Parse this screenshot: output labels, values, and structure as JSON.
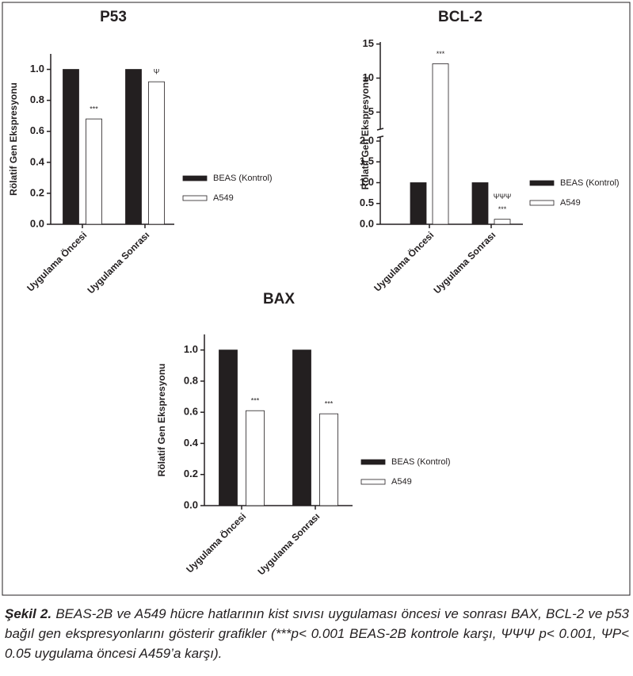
{
  "chart_data": [
    {
      "type": "bar",
      "title": "P53",
      "ylabel": "Rölatif Gen Ekspresyonu",
      "categories": [
        "Uygulama Öncesi",
        "Uygulama Sonrası"
      ],
      "series": [
        {
          "name": "BEAS (Kontrol)",
          "color": "#231f20",
          "values": [
            1,
            1
          ]
        },
        {
          "name": "A549",
          "color": "#ffffff",
          "values": [
            0.68,
            0.92
          ],
          "significance": [
            [
              "***"
            ],
            [
              "Ψ"
            ]
          ]
        }
      ],
      "ylim": [
        0,
        1.1
      ],
      "yticks": [
        {
          "value": 0,
          "label": "0.0"
        },
        0.2,
        0.4,
        0.6,
        0.8,
        {
          "value": 1,
          "label": "1.0"
        }
      ]
    },
    {
      "type": "bar",
      "title": "BCL-2",
      "ylabel": "Rölatif Gen Ekspresyonu",
      "categories": [
        "Uygulama Öncesi",
        "Uygulama Sonrası"
      ],
      "series": [
        {
          "name": "BEAS (Kontrol)",
          "color": "#231f20",
          "values": [
            1,
            1
          ]
        },
        {
          "name": "A549",
          "color": "#ffffff",
          "values": [
            12.1,
            0.12
          ],
          "significance": [
            [
              "***"
            ],
            [
              "ΨΨΨ",
              "***"
            ]
          ]
        }
      ],
      "ylim": [
        0,
        15.3
      ],
      "ybreak": [
        2.1,
        2.5
      ],
      "yticks": [
        {
          "value": 0,
          "label": "0.0"
        },
        0.5,
        {
          "value": 1,
          "label": "1.0"
        },
        1.5,
        {
          "value": 2,
          "label": "2.0"
        },
        5,
        10,
        15
      ]
    },
    {
      "type": "bar",
      "title": "BAX",
      "ylabel": "Rölatif Gen Ekspresyonu",
      "categories": [
        "Uygulama Öncesi",
        "Uygulama Sonrası"
      ],
      "series": [
        {
          "name": "BEAS (Kontrol)",
          "color": "#231f20",
          "values": [
            1,
            1
          ]
        },
        {
          "name": "A549",
          "color": "#ffffff",
          "values": [
            0.61,
            0.59
          ],
          "significance": [
            [
              "***"
            ],
            [
              "***"
            ]
          ]
        }
      ],
      "ylim": [
        0,
        1.1
      ],
      "yticks": [
        {
          "value": 0,
          "label": "0.0"
        },
        0.2,
        0.4,
        0.6,
        0.8,
        {
          "value": 1,
          "label": "1.0"
        }
      ]
    }
  ],
  "caption": {
    "label": "Şekil 2.",
    "text": "BEAS-2B ve A549 hücre hatlarının kist sıvısı uygulaması öncesi ve sonrası BAX, BCL-2 ve p53 bağıl gen ekspresyonlarını gösterir grafikler (***p< 0.001 BEAS-2B kontrole karşı, ΨΨΨ p< 0.001, ΨP< 0.05 uygulama öncesi A459’a karşı)."
  }
}
